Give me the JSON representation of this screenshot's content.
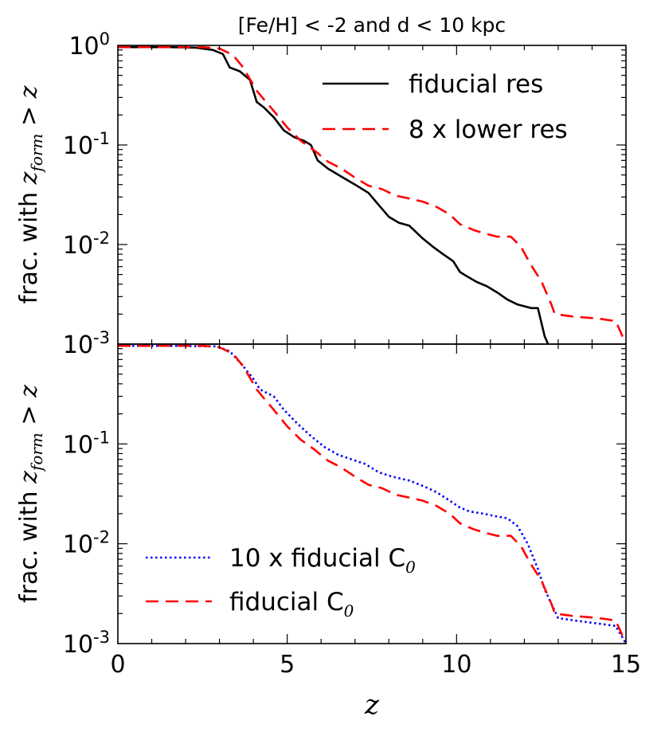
{
  "title": "[Fe/H] < -2 and d < 10 kpc",
  "xlabel": "z",
  "xticks": [
    "0",
    "5",
    "10",
    "15"
  ],
  "chart_data": [
    {
      "type": "line",
      "panel": "top",
      "xlabel": "z",
      "ylabel": "frac. with z_form > z",
      "yscale": "log",
      "xlim": [
        0,
        15
      ],
      "ylim": [
        0.001,
        1
      ],
      "yticks": [
        {
          "base": "10",
          "exp": "0"
        },
        {
          "base": "10",
          "exp": "-1"
        },
        {
          "base": "10",
          "exp": "-2"
        },
        {
          "base": "10",
          "exp": "-3"
        }
      ],
      "legend_position": "top-right",
      "series": [
        {
          "name": "fiducial res",
          "color": "#000000",
          "style": "solid",
          "points": [
            [
              0,
              0.96
            ],
            [
              1.5,
              0.96
            ],
            [
              2.3,
              0.95
            ],
            [
              2.8,
              0.9
            ],
            [
              3.1,
              0.82
            ],
            [
              3.3,
              0.6
            ],
            [
              3.6,
              0.55
            ],
            [
              3.9,
              0.45
            ],
            [
              4.1,
              0.27
            ],
            [
              4.3,
              0.24
            ],
            [
              4.6,
              0.19
            ],
            [
              4.9,
              0.14
            ],
            [
              5.2,
              0.12
            ],
            [
              5.5,
              0.11
            ],
            [
              5.7,
              0.1
            ],
            [
              5.9,
              0.07
            ],
            [
              6.2,
              0.058
            ],
            [
              6.6,
              0.048
            ],
            [
              7.0,
              0.04
            ],
            [
              7.4,
              0.033
            ],
            [
              7.7,
              0.025
            ],
            [
              8.0,
              0.019
            ],
            [
              8.3,
              0.0165
            ],
            [
              8.6,
              0.0155
            ],
            [
              9.0,
              0.0115
            ],
            [
              9.3,
              0.0095
            ],
            [
              9.6,
              0.008
            ],
            [
              9.9,
              0.0068
            ],
            [
              10.1,
              0.0053
            ],
            [
              10.3,
              0.0048
            ],
            [
              10.6,
              0.0042
            ],
            [
              10.9,
              0.0038
            ],
            [
              11.2,
              0.0033
            ],
            [
              11.5,
              0.0028
            ],
            [
              11.8,
              0.0025
            ],
            [
              12.2,
              0.0023
            ],
            [
              12.4,
              0.0023
            ],
            [
              12.6,
              0.0012
            ],
            [
              12.7,
              0.001
            ]
          ]
        },
        {
          "name": "8 x lower res",
          "color": "#ff0000",
          "style": "dashed",
          "points": [
            [
              0,
              0.96
            ],
            [
              1.5,
              0.96
            ],
            [
              2.5,
              0.96
            ],
            [
              3.0,
              0.93
            ],
            [
              3.4,
              0.8
            ],
            [
              3.7,
              0.6
            ],
            [
              4.1,
              0.35
            ],
            [
              4.3,
              0.29
            ],
            [
              4.6,
              0.22
            ],
            [
              5.0,
              0.15
            ],
            [
              5.4,
              0.11
            ],
            [
              5.8,
              0.088
            ],
            [
              6.2,
              0.068
            ],
            [
              6.6,
              0.058
            ],
            [
              7.0,
              0.047
            ],
            [
              7.4,
              0.039
            ],
            [
              7.8,
              0.036
            ],
            [
              8.2,
              0.031
            ],
            [
              8.6,
              0.029
            ],
            [
              9.0,
              0.027
            ],
            [
              9.4,
              0.024
            ],
            [
              9.8,
              0.02
            ],
            [
              10.1,
              0.016
            ],
            [
              10.5,
              0.014
            ],
            [
              10.8,
              0.013
            ],
            [
              11.2,
              0.012
            ],
            [
              11.6,
              0.012
            ],
            [
              11.9,
              0.0095
            ],
            [
              12.2,
              0.0062
            ],
            [
              12.5,
              0.0043
            ],
            [
              12.8,
              0.0025
            ],
            [
              12.9,
              0.002
            ],
            [
              13.4,
              0.0019
            ],
            [
              14.2,
              0.0018
            ],
            [
              14.7,
              0.0017
            ],
            [
              15.0,
              0.001
            ]
          ]
        }
      ]
    },
    {
      "type": "line",
      "panel": "bottom",
      "xlabel": "z",
      "ylabel": "frac. with z_form > z",
      "yscale": "log",
      "xlim": [
        0,
        15
      ],
      "ylim": [
        0.001,
        1
      ],
      "yticks": [
        {
          "base": "10",
          "exp": "-1"
        },
        {
          "base": "10",
          "exp": "-2"
        },
        {
          "base": "10",
          "exp": "-3"
        }
      ],
      "legend_position": "bottom-left",
      "series": [
        {
          "name": "10 x fiducial C",
          "name_subscript": "0",
          "color": "#0000ff",
          "style": "dotted",
          "points": [
            [
              0,
              0.96
            ],
            [
              1.5,
              0.96
            ],
            [
              2.9,
              0.95
            ],
            [
              3.3,
              0.85
            ],
            [
              3.7,
              0.6
            ],
            [
              4.0,
              0.45
            ],
            [
              4.2,
              0.35
            ],
            [
              4.6,
              0.3
            ],
            [
              4.9,
              0.22
            ],
            [
              5.3,
              0.16
            ],
            [
              5.7,
              0.12
            ],
            [
              6.1,
              0.093
            ],
            [
              6.5,
              0.078
            ],
            [
              6.9,
              0.07
            ],
            [
              7.3,
              0.063
            ],
            [
              7.7,
              0.052
            ],
            [
              8.1,
              0.047
            ],
            [
              8.6,
              0.043
            ],
            [
              9.0,
              0.038
            ],
            [
              9.4,
              0.033
            ],
            [
              9.8,
              0.027
            ],
            [
              10.1,
              0.023
            ],
            [
              10.4,
              0.021
            ],
            [
              10.8,
              0.02
            ],
            [
              11.1,
              0.019
            ],
            [
              11.5,
              0.018
            ],
            [
              11.8,
              0.015
            ],
            [
              12.1,
              0.01
            ],
            [
              12.4,
              0.0056
            ],
            [
              12.6,
              0.0035
            ],
            [
              12.8,
              0.0025
            ],
            [
              13.0,
              0.0018
            ],
            [
              13.5,
              0.0017
            ],
            [
              14.1,
              0.0016
            ],
            [
              14.7,
              0.0015
            ],
            [
              15.0,
              0.001
            ]
          ]
        },
        {
          "name": "fiducial C",
          "name_subscript": "0",
          "color": "#ff0000",
          "style": "dashed",
          "points": [
            [
              0,
              0.96
            ],
            [
              1.5,
              0.96
            ],
            [
              2.5,
              0.96
            ],
            [
              3.0,
              0.93
            ],
            [
              3.4,
              0.8
            ],
            [
              3.7,
              0.6
            ],
            [
              4.1,
              0.35
            ],
            [
              4.3,
              0.29
            ],
            [
              4.6,
              0.22
            ],
            [
              5.0,
              0.15
            ],
            [
              5.4,
              0.11
            ],
            [
              5.8,
              0.088
            ],
            [
              6.2,
              0.068
            ],
            [
              6.6,
              0.058
            ],
            [
              7.0,
              0.047
            ],
            [
              7.4,
              0.039
            ],
            [
              7.8,
              0.036
            ],
            [
              8.2,
              0.031
            ],
            [
              8.6,
              0.029
            ],
            [
              9.0,
              0.027
            ],
            [
              9.4,
              0.024
            ],
            [
              9.8,
              0.02
            ],
            [
              10.1,
              0.016
            ],
            [
              10.5,
              0.014
            ],
            [
              10.8,
              0.013
            ],
            [
              11.2,
              0.012
            ],
            [
              11.6,
              0.012
            ],
            [
              11.9,
              0.0095
            ],
            [
              12.2,
              0.0062
            ],
            [
              12.5,
              0.0043
            ],
            [
              12.8,
              0.0025
            ],
            [
              12.9,
              0.002
            ],
            [
              13.4,
              0.0019
            ],
            [
              14.2,
              0.0018
            ],
            [
              14.7,
              0.0017
            ],
            [
              15.0,
              0.001
            ]
          ]
        }
      ]
    }
  ]
}
